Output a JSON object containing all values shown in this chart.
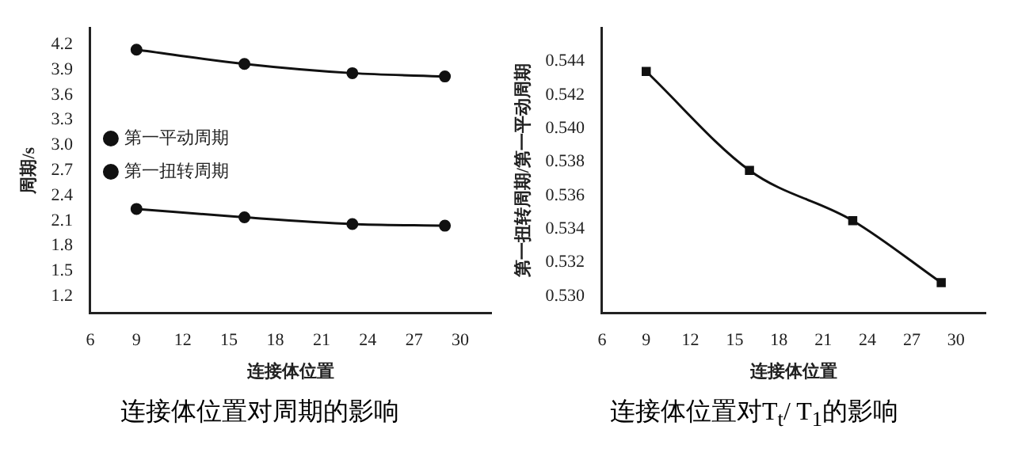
{
  "chart_data": [
    {
      "type": "line",
      "title": "连接体位置对周期的影响",
      "xlabel": "连接体位置",
      "ylabel": "周期/s",
      "x": [
        9,
        16,
        23,
        29
      ],
      "series": [
        {
          "name": "第一平动周期",
          "color": "#111111",
          "values": [
            4.14,
            3.97,
            3.86,
            3.82
          ]
        },
        {
          "name": "第一扭转周期",
          "color": "#111111",
          "values": [
            2.24,
            2.14,
            2.06,
            2.04
          ]
        }
      ],
      "xlim": [
        6,
        32
      ],
      "xticks": [
        6,
        9,
        12,
        15,
        18,
        21,
        24,
        27,
        30
      ],
      "ylim": [
        1.0,
        4.4
      ],
      "yticks": [
        1.2,
        1.5,
        1.8,
        2.1,
        2.4,
        2.7,
        {
          "value": 3,
          "label": "3.0"
        },
        3.3,
        3.6,
        3.9,
        4.2
      ],
      "grid": false,
      "legend": "top",
      "marker": "circle",
      "line_style": "solid"
    },
    {
      "type": "line",
      "title": "连接体位置对T$_{t}$/ T$_{1}$的影响",
      "xlabel": "连接体位置",
      "ylabel": "第一扭转周期/第一平动周期",
      "x": [
        9,
        16,
        23,
        29
      ],
      "series": [
        {
          "color": "#111111",
          "values": [
            0.5434,
            0.5375,
            0.5345,
            0.5308
          ]
        }
      ],
      "xlim": [
        6,
        32
      ],
      "xticks": [
        6,
        9,
        12,
        15,
        18,
        21,
        24,
        27,
        30
      ],
      "ylim": [
        0.529,
        0.546
      ],
      "yticks": [
        {
          "value": 0.53,
          "label": "0.530"
        },
        0.532,
        0.534,
        0.536,
        0.538,
        {
          "value": 0.54,
          "label": "0.540"
        },
        0.542,
        0.544
      ],
      "grid": false,
      "legend": false,
      "marker": "square",
      "line_style": "solid"
    }
  ]
}
